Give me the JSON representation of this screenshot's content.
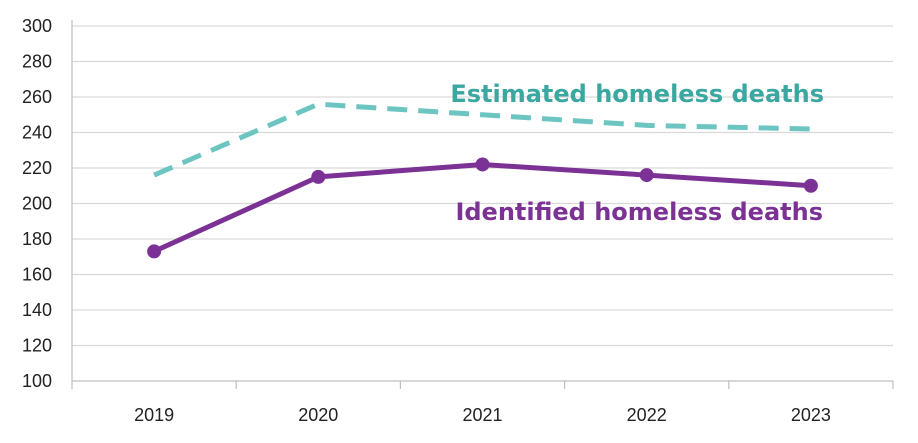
{
  "chart_data": {
    "type": "line",
    "categories": [
      "2019",
      "2020",
      "2021",
      "2022",
      "2023"
    ],
    "ylim": [
      100,
      300
    ],
    "yticks": [
      100,
      120,
      140,
      160,
      180,
      200,
      220,
      240,
      260,
      280,
      300
    ],
    "grid": true,
    "legend": "inline labels",
    "series": [
      {
        "name": "Estimated homeless deaths",
        "values": [
          216,
          256,
          250,
          244,
          242
        ],
        "color": "#6cc5c0",
        "style": "dashed",
        "markers": false
      },
      {
        "name": "Identified homeless deaths",
        "values": [
          173,
          215,
          222,
          216,
          210
        ],
        "color": "#7b3294",
        "style": "solid",
        "markers": true
      }
    ]
  }
}
